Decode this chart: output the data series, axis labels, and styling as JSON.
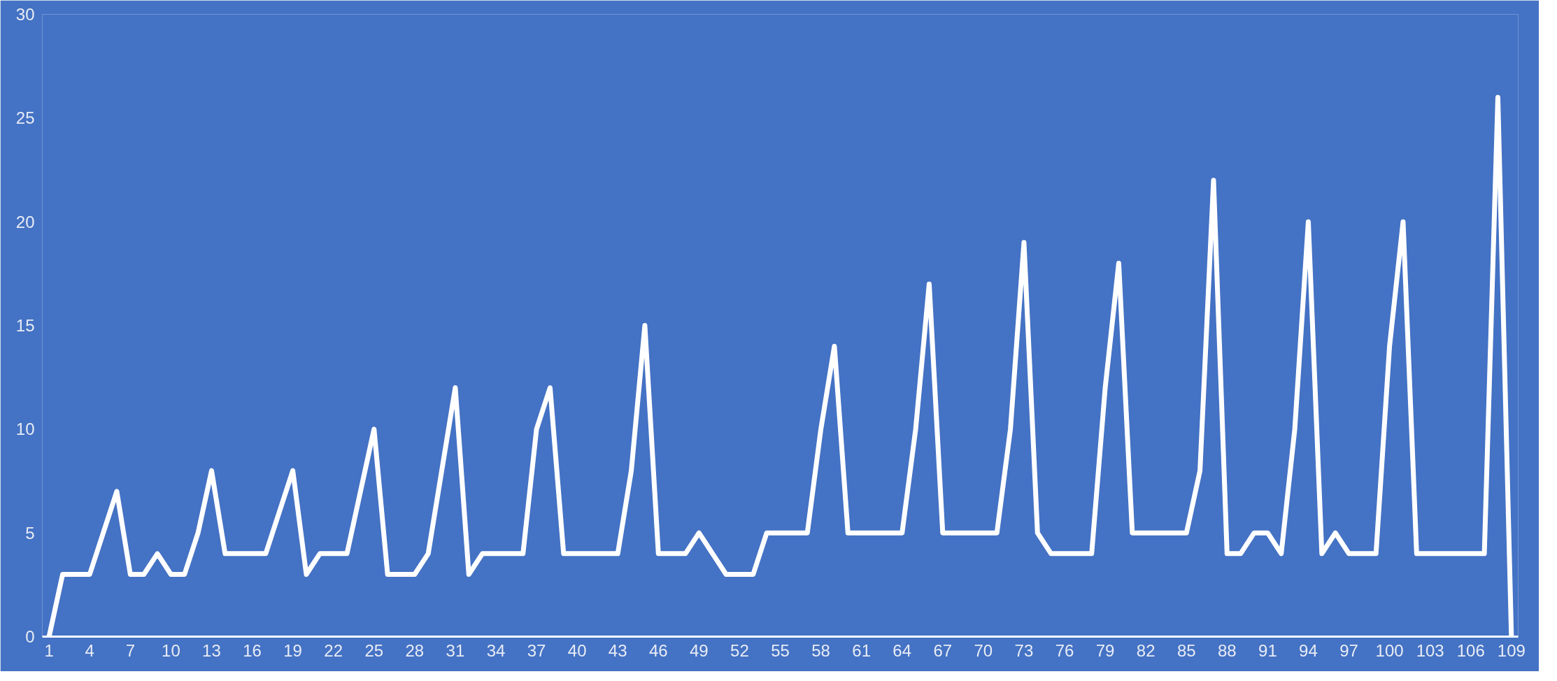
{
  "chart_data": {
    "type": "line",
    "categories": [
      "1",
      null,
      null,
      "4",
      null,
      null,
      "7",
      null,
      null,
      "10",
      null,
      null,
      "13",
      null,
      null,
      "16",
      null,
      null,
      "19",
      null,
      null,
      "22",
      null,
      null,
      "25",
      null,
      null,
      "28",
      null,
      null,
      "31",
      null,
      null,
      "34",
      null,
      null,
      "37",
      null,
      null,
      "40",
      null,
      null,
      "43",
      null,
      null,
      "46",
      null,
      null,
      "49",
      null,
      null,
      "52",
      null,
      null,
      "55",
      null,
      null,
      "58",
      null,
      null,
      "61",
      null,
      null,
      "64",
      null,
      null,
      "67",
      null,
      null,
      "70",
      null,
      null,
      "73",
      null,
      null,
      "76",
      null,
      null,
      "79",
      null,
      null,
      "82",
      null,
      null,
      "85",
      null,
      null,
      "88",
      null,
      null,
      "91",
      null,
      null,
      "94",
      null,
      null,
      "97",
      null,
      null,
      "100",
      null,
      null,
      "103",
      null,
      null,
      "106",
      null,
      null,
      "109"
    ],
    "series": [
      {
        "color": "#ffffff",
        "values": [
          0,
          3,
          3,
          3,
          5,
          7,
          3,
          3,
          4,
          3,
          3,
          5,
          8,
          4,
          4,
          4,
          4,
          6,
          8,
          3,
          4,
          4,
          4,
          7,
          10,
          3,
          3,
          3,
          4,
          8,
          12,
          3,
          4,
          4,
          4,
          4,
          10,
          12,
          4,
          4,
          4,
          4,
          4,
          8,
          15,
          4,
          4,
          4,
          5,
          4,
          3,
          3,
          3,
          5,
          5,
          5,
          5,
          10,
          14,
          5,
          5,
          5,
          5,
          5,
          10,
          17,
          5,
          5,
          5,
          5,
          5,
          10,
          19,
          5,
          4,
          4,
          4,
          4,
          12,
          18,
          5,
          5,
          5,
          5,
          5,
          8,
          22,
          4,
          4,
          5,
          5,
          4,
          10,
          20,
          4,
          5,
          4,
          4,
          4,
          14,
          20,
          4,
          4,
          4,
          4,
          4,
          4,
          26,
          0
        ]
      }
    ],
    "ylim": [
      0,
      30
    ],
    "yticks": [
      0,
      5,
      10,
      15,
      20,
      25,
      30
    ],
    "grid": false,
    "marker": "none",
    "line_style": "solid"
  }
}
